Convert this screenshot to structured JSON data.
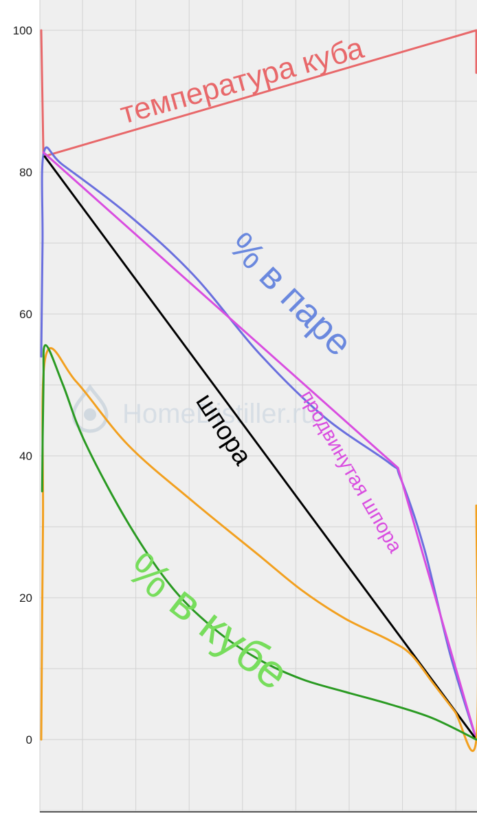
{
  "chart_data": {
    "type": "line",
    "title": "",
    "xlabel": "",
    "ylabel": "",
    "ylim": [
      -10,
      103.5
    ],
    "xlim": [
      0,
      100
    ],
    "yticks": [
      0,
      20,
      40,
      60,
      80,
      100
    ],
    "grid": true,
    "legend": "none",
    "series": [
      {
        "color": "#e8686a",
        "x": [
          0,
          0.5,
          100,
          100
        ],
        "y": [
          100,
          82.2,
          100,
          94
        ]
      },
      {
        "color": "#6a6fde",
        "x": [
          0,
          0.3,
          0.6,
          5,
          20,
          35,
          50,
          65,
          80,
          82.5,
          88,
          94,
          100
        ],
        "y": [
          54,
          70,
          82.8,
          81,
          74,
          65.5,
          54.5,
          45.5,
          39,
          37,
          27,
          12,
          0
        ]
      },
      {
        "color": "#d94de0",
        "x": [
          0.5,
          82,
          100
        ],
        "y": [
          82.8,
          38.3,
          0
        ]
      },
      {
        "color": "#000000",
        "x": [
          0.8,
          100
        ],
        "y": [
          82.2,
          0
        ]
      },
      {
        "color": "#f2a01f",
        "x": [
          0,
          0.4,
          1,
          8,
          20,
          35,
          50,
          60,
          70,
          80,
          85,
          90,
          95,
          100,
          100
        ],
        "y": [
          0,
          30,
          54,
          50.5,
          41.5,
          33.5,
          26,
          21,
          17,
          14,
          12,
          8,
          4,
          0,
          33
        ]
      },
      {
        "color": "#2a9a22",
        "x": [
          0.2,
          0.5,
          1,
          5,
          10,
          20,
          30,
          40,
          50,
          60,
          70,
          80,
          90,
          100
        ],
        "y": [
          35,
          50,
          55.6,
          50,
          42,
          30.5,
          21.5,
          15.5,
          11.3,
          8.5,
          6.7,
          5,
          3,
          0
        ]
      }
    ],
    "annotations": [
      {
        "text": "температура куба",
        "color": "#e8686a"
      },
      {
        "text": "% в паре",
        "color": "#6a88de"
      },
      {
        "text": "шпора",
        "color": "#000000"
      },
      {
        "text": "продвинутая шпора",
        "color": "#d94de0"
      },
      {
        "text": "% в кубе",
        "color": "#77dd5c"
      }
    ],
    "watermark": {
      "text": "HomeDistiller.ru",
      "icon": "drop-icon"
    }
  }
}
